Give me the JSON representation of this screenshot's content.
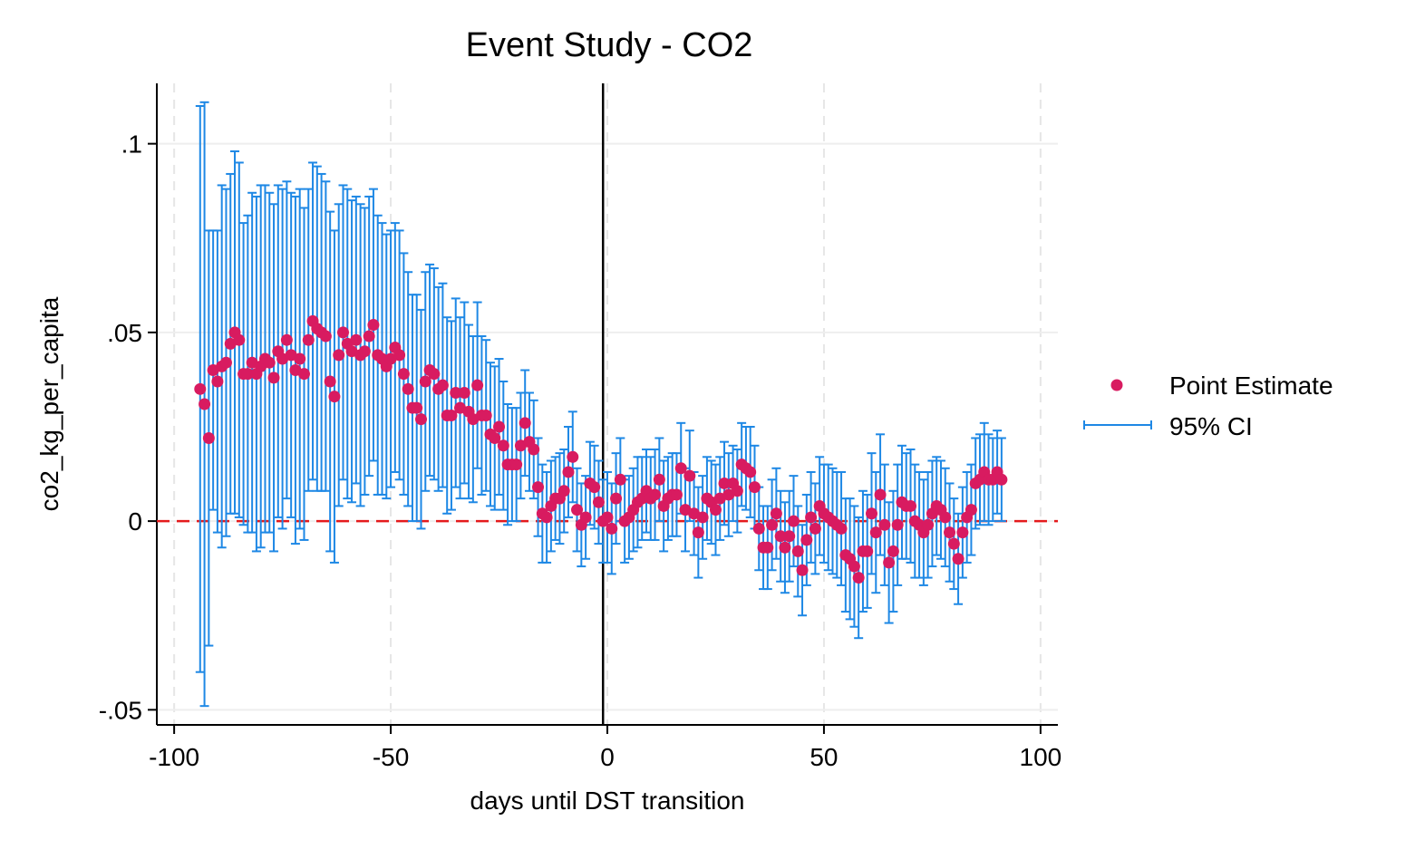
{
  "chart_data": {
    "type": "scatter",
    "title": "Event Study - CO2",
    "x_label": "days until DST transition",
    "y_label": "co2_kg_per_capita",
    "x": [
      -94,
      -93,
      -92,
      -91,
      -90,
      -89,
      -88,
      -87,
      -86,
      -85,
      -84,
      -83,
      -82,
      -81,
      -80,
      -79,
      -78,
      -77,
      -76,
      -75,
      -74,
      -73,
      -72,
      -71,
      -70,
      -69,
      -68,
      -67,
      -66,
      -65,
      -64,
      -63,
      -62,
      -61,
      -60,
      -59,
      -58,
      -57,
      -56,
      -55,
      -54,
      -53,
      -52,
      -51,
      -50,
      -49,
      -48,
      -47,
      -46,
      -45,
      -44,
      -43,
      -42,
      -41,
      -40,
      -39,
      -38,
      -37,
      -36,
      -35,
      -34,
      -33,
      -32,
      -31,
      -30,
      -29,
      -28,
      -27,
      -26,
      -25,
      -24,
      -23,
      -22,
      -21,
      -20,
      -19,
      -18,
      -17,
      -16,
      -15,
      -14,
      -13,
      -12,
      -11,
      -10,
      -9,
      -8,
      -7,
      -6,
      -5,
      -4,
      -3,
      -2,
      -1,
      0,
      1,
      2,
      3,
      4,
      5,
      6,
      7,
      8,
      9,
      10,
      11,
      12,
      13,
      14,
      15,
      16,
      17,
      18,
      19,
      20,
      21,
      22,
      23,
      24,
      25,
      26,
      27,
      28,
      29,
      30,
      31,
      32,
      33,
      34,
      35,
      36,
      37,
      38,
      39,
      40,
      41,
      42,
      43,
      44,
      45,
      46,
      47,
      48,
      49,
      50,
      51,
      52,
      53,
      54,
      55,
      56,
      57,
      58,
      59,
      60,
      61,
      62,
      63,
      64,
      65,
      66,
      67,
      68,
      69,
      70,
      71,
      72,
      73,
      74,
      75,
      76,
      77,
      78,
      79,
      80,
      81,
      82,
      83,
      84,
      85,
      86,
      87,
      88,
      89,
      90,
      91
    ],
    "series": [
      {
        "name": "Point Estimate",
        "color": "#d81b60",
        "values": [
          0.035,
          0.031,
          0.022,
          0.04,
          0.037,
          0.041,
          0.042,
          0.047,
          0.05,
          0.048,
          0.039,
          0.039,
          0.042,
          0.039,
          0.041,
          0.043,
          0.042,
          0.038,
          0.045,
          0.043,
          0.048,
          0.044,
          0.04,
          0.043,
          0.039,
          0.048,
          0.053,
          0.051,
          0.05,
          0.049,
          0.037,
          0.033,
          0.044,
          0.05,
          0.047,
          0.045,
          0.048,
          0.044,
          0.045,
          0.049,
          0.052,
          0.044,
          0.043,
          0.041,
          0.043,
          0.046,
          0.044,
          0.039,
          0.035,
          0.03,
          0.03,
          0.027,
          0.037,
          0.04,
          0.039,
          0.035,
          0.036,
          0.028,
          0.028,
          0.034,
          0.03,
          0.034,
          0.029,
          0.027,
          0.036,
          0.028,
          0.028,
          0.023,
          0.022,
          0.025,
          0.02,
          0.015,
          0.015,
          0.015,
          0.02,
          0.026,
          0.021,
          0.019,
          0.009,
          0.002,
          0.001,
          0.004,
          0.006,
          0.006,
          0.008,
          0.013,
          0.017,
          0.003,
          -0.001,
          0.001,
          0.01,
          0.009,
          0.005,
          0,
          0.001,
          -0.002,
          0.006,
          0.011,
          0,
          0.001,
          0.003,
          0.005,
          0.006,
          0.008,
          0.006,
          0.007,
          0.011,
          0.004,
          0.006,
          0.007,
          0.007,
          0.014,
          0.003,
          0.012,
          0.002,
          -0.003,
          0.001,
          0.006,
          0.005,
          0.003,
          0.006,
          0.01,
          0.007,
          0.01,
          0.008,
          0.015,
          0.014,
          0.013,
          0.009,
          -0.002,
          -0.007,
          -0.007,
          -0.001,
          0.002,
          -0.004,
          -0.007,
          -0.004,
          0,
          -0.008,
          -0.013,
          -0.005,
          0.001,
          -0.002,
          0.004,
          0.002,
          0.001,
          0,
          -0.001,
          -0.002,
          -0.009,
          -0.01,
          -0.012,
          -0.015,
          -0.008,
          -0.008,
          0.002,
          -0.003,
          0.007,
          -0.001,
          -0.011,
          -0.008,
          -0.001,
          0.005,
          0.004,
          0.004,
          0,
          -0.001,
          -0.003,
          -0.001,
          0.002,
          0.004,
          0.003,
          0.001,
          -0.003,
          -0.006,
          -0.01,
          -0.003,
          0.001,
          0.003,
          0.01,
          0.011,
          0.013,
          0.011,
          0.011,
          0.013,
          0.011
        ]
      },
      {
        "name": "95% CI",
        "color": "#1e88e5",
        "errors": [
          0.075,
          0.08,
          0.055,
          0.037,
          0.04,
          0.048,
          0.046,
          0.045,
          0.048,
          0.047,
          0.04,
          0.042,
          0.045,
          0.047,
          0.048,
          0.046,
          0.045,
          0.046,
          0.044,
          0.045,
          0.042,
          0.043,
          0.046,
          0.045,
          0.044,
          0.04,
          0.042,
          0.043,
          0.042,
          0.041,
          0.045,
          0.044,
          0.04,
          0.039,
          0.041,
          0.04,
          0.038,
          0.04,
          0.038,
          0.037,
          0.036,
          0.037,
          0.036,
          0.035,
          0.034,
          0.033,
          0.033,
          0.032,
          0.031,
          0.03,
          0.03,
          0.029,
          0.029,
          0.028,
          0.028,
          0.027,
          0.027,
          0.026,
          0.025,
          0.025,
          0.024,
          0.024,
          0.023,
          0.022,
          0.022,
          0.021,
          0.02,
          0.019,
          0.019,
          0.018,
          0.017,
          0.016,
          0.015,
          0.015,
          0.014,
          0.014,
          0.013,
          0.013,
          0.013,
          0.013,
          0.012,
          0.012,
          0.011,
          0.012,
          0.011,
          0.012,
          0.012,
          0.011,
          0.011,
          0.011,
          0.011,
          0.011,
          0.011,
          0.011,
          0.012,
          0.012,
          0.012,
          0.011,
          0.011,
          0.011,
          0.011,
          0.012,
          0.011,
          0.011,
          0.011,
          0.012,
          0.011,
          0.012,
          0.011,
          0.011,
          0.011,
          0.012,
          0.011,
          0.012,
          0.011,
          0.012,
          0.011,
          0.011,
          0.011,
          0.012,
          0.011,
          0.011,
          0.011,
          0.01,
          0.011,
          0.011,
          0.011,
          0.012,
          0.011,
          0.011,
          0.011,
          0.011,
          0.012,
          0.012,
          0.012,
          0.012,
          0.012,
          0.012,
          0.012,
          0.012,
          0.012,
          0.012,
          0.012,
          0.013,
          0.013,
          0.014,
          0.014,
          0.014,
          0.015,
          0.015,
          0.016,
          0.016,
          0.016,
          0.016,
          0.015,
          0.016,
          0.016,
          0.016,
          0.016,
          0.016,
          0.016,
          0.016,
          0.015,
          0.014,
          0.015,
          0.015,
          0.014,
          0.014,
          0.014,
          0.014,
          0.013,
          0.013,
          0.013,
          0.013,
          0.012,
          0.012,
          0.012,
          0.012,
          0.012,
          0.012,
          0.012,
          0.013,
          0.012,
          0.011,
          0.011,
          0.011
        ]
      }
    ],
    "xlim": [
      -104,
      104
    ],
    "ylim": [
      -0.054,
      0.116
    ],
    "xticks": [
      -100,
      -50,
      0,
      50,
      100
    ],
    "yticks": [
      {
        "value": -0.05,
        "label": "-.05"
      },
      0,
      {
        "value": 0.05,
        "label": ".05"
      },
      {
        "value": 0.1,
        "label": ".1"
      }
    ],
    "grid": true,
    "hline": 0,
    "hline_color": "#e41a1c",
    "vline": -1,
    "legend": "right"
  }
}
